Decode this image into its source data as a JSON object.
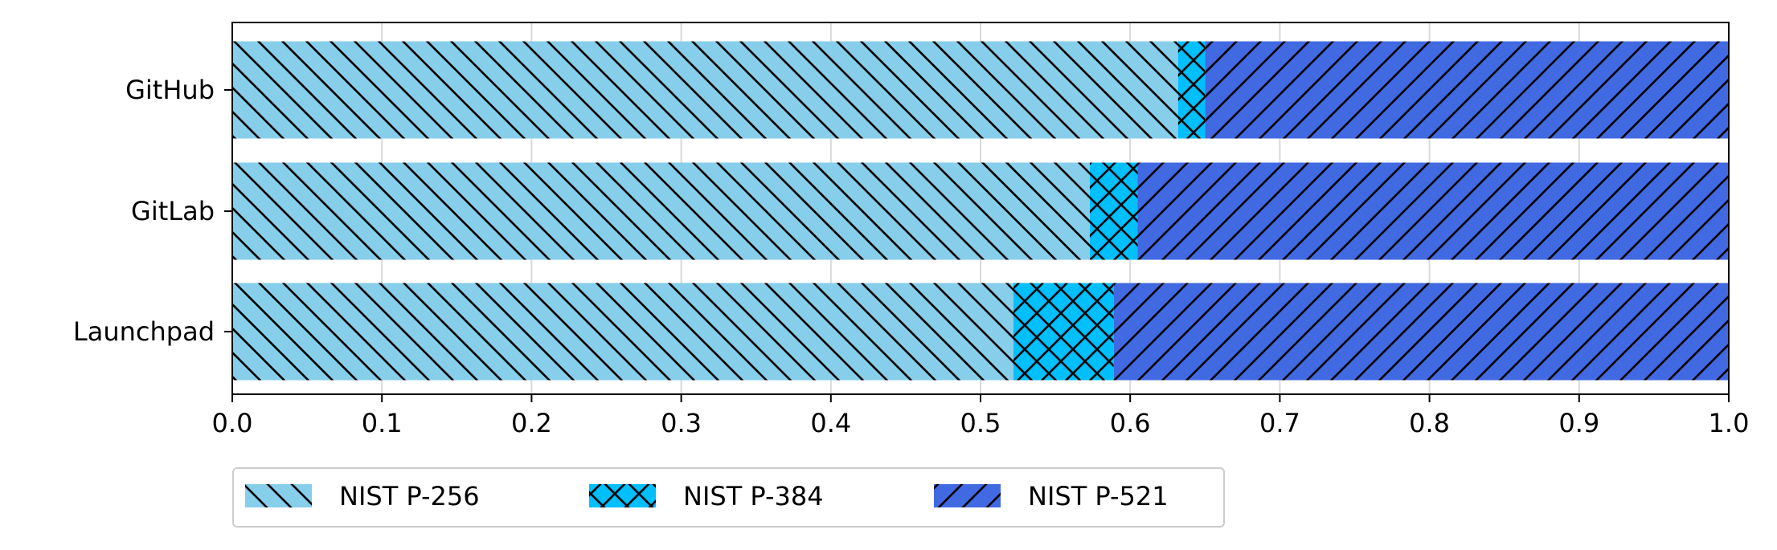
{
  "chart_data": {
    "type": "bar",
    "orientation": "horizontal",
    "stacked": true,
    "categories": [
      "GitHub",
      "GitLab",
      "Launchpad"
    ],
    "series": [
      {
        "name": "NIST P-256",
        "values": [
          0.632,
          0.573,
          0.522
        ],
        "color": "#87ceeb",
        "hatch": "backslash"
      },
      {
        "name": "NIST P-384",
        "values": [
          0.018,
          0.032,
          0.067
        ],
        "color": "#00bfff",
        "hatch": "cross"
      },
      {
        "name": "NIST P-521",
        "values": [
          0.35,
          0.395,
          0.411
        ],
        "color": "#4169e1",
        "hatch": "slash"
      }
    ],
    "xlim": [
      0.0,
      1.0
    ],
    "xticks": [
      "0.0",
      "0.1",
      "0.2",
      "0.3",
      "0.4",
      "0.5",
      "0.6",
      "0.7",
      "0.8",
      "0.9",
      "1.0"
    ],
    "xlabel": "",
    "ylabel": "",
    "grid": "x",
    "legend_position": "bottom-left"
  }
}
